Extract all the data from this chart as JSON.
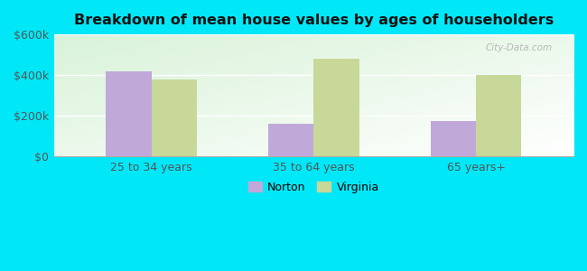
{
  "title": "Breakdown of mean house values by ages of householders",
  "categories": [
    "25 to 34 years",
    "35 to 64 years",
    "65 years+"
  ],
  "norton_values": [
    420000,
    160000,
    175000
  ],
  "virginia_values": [
    380000,
    480000,
    400000
  ],
  "norton_color": "#c0a8d8",
  "virginia_color": "#c8d898",
  "ylim": [
    0,
    600000
  ],
  "yticks": [
    0,
    200000,
    400000,
    600000
  ],
  "ytick_labels": [
    "$0",
    "$200k",
    "$400k",
    "$600k"
  ],
  "legend_norton": "Norton",
  "legend_virginia": "Virginia",
  "outer_bg": "#00e8f8",
  "plot_bg_top": "#d8f0d8",
  "plot_bg_bottom": "#f8fff8",
  "bar_width": 0.28,
  "watermark": "City-Data.com"
}
